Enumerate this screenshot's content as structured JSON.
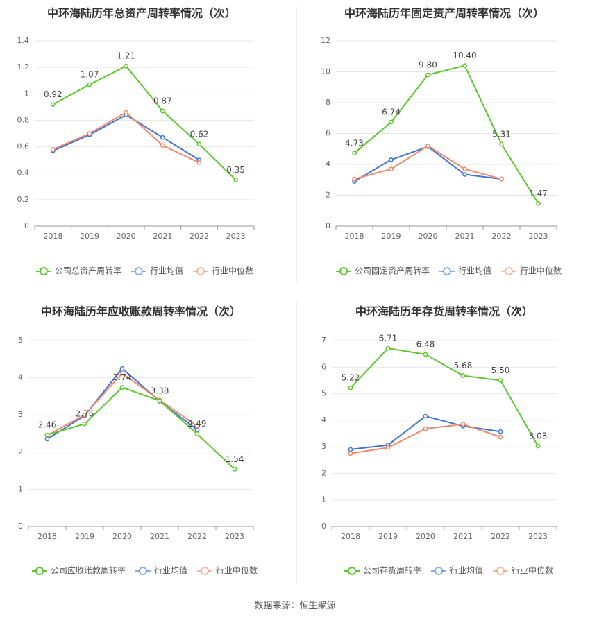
{
  "source_label": "数据来源：恒生聚源",
  "colors": {
    "company": "#5cc72c",
    "avg": "#3e74dc",
    "median": "#f0896a"
  },
  "chart_data": [
    {
      "type": "line",
      "title": "中环海陆历年总资产周转率情况（次）",
      "categories": [
        "2018",
        "2019",
        "2020",
        "2021",
        "2022",
        "2023"
      ],
      "ylim": [
        0,
        1.4
      ],
      "yticks": [
        0,
        0.2,
        0.4,
        0.6,
        0.8,
        1,
        1.2,
        1.4
      ],
      "ytick_labels": [
        "0",
        "0.2",
        "0.4",
        "0.6",
        "0.8",
        "1",
        "1.2",
        "1.4"
      ],
      "grid": true,
      "legend": "bottom",
      "series": [
        {
          "name": "公司总资产周转率",
          "values": [
            0.92,
            1.07,
            1.21,
            0.87,
            0.62,
            0.35
          ],
          "labels": [
            "0.92",
            "1.07",
            "1.21",
            "0.87",
            "0.62",
            "0.35"
          ]
        },
        {
          "name": "行业均值",
          "values": [
            0.57,
            0.69,
            0.84,
            0.67,
            0.5,
            null
          ]
        },
        {
          "name": "行业中位数",
          "values": [
            0.58,
            0.7,
            0.86,
            0.61,
            0.48,
            null
          ]
        }
      ]
    },
    {
      "type": "line",
      "title": "中环海陆历年固定资产周转率情况（次）",
      "categories": [
        "2018",
        "2019",
        "2020",
        "2021",
        "2022",
        "2023"
      ],
      "ylim": [
        0,
        12
      ],
      "yticks": [
        0,
        2,
        4,
        6,
        8,
        10,
        12
      ],
      "ytick_labels": [
        "0",
        "2",
        "4",
        "6",
        "8",
        "10",
        "12"
      ],
      "grid": true,
      "legend": "bottom",
      "series": [
        {
          "name": "公司固定资产周转率",
          "values": [
            4.73,
            6.74,
            9.8,
            10.4,
            5.31,
            1.47
          ],
          "labels": [
            "4.73",
            "6.74",
            "9.80",
            "10.40",
            "5.31",
            "1.47"
          ]
        },
        {
          "name": "行业均值",
          "values": [
            2.9,
            4.3,
            5.15,
            3.35,
            3.05,
            null
          ]
        },
        {
          "name": "行业中位数",
          "values": [
            3.05,
            3.7,
            5.2,
            3.7,
            3.05,
            null
          ]
        }
      ]
    },
    {
      "type": "line",
      "title": "中环海陆历年应收账款周转率情况（次）",
      "categories": [
        "2018",
        "2019",
        "2020",
        "2021",
        "2022",
        "2023"
      ],
      "ylim": [
        0,
        5
      ],
      "yticks": [
        0,
        1,
        2,
        3,
        4,
        5
      ],
      "ytick_labels": [
        "0",
        "1",
        "2",
        "3",
        "4",
        "5"
      ],
      "grid": true,
      "legend": "bottom",
      "series": [
        {
          "name": "公司应收账款周转率",
          "values": [
            2.46,
            2.76,
            3.74,
            3.38,
            2.49,
            1.54
          ],
          "labels": [
            "2.46",
            "2.76",
            "3.74",
            "3.38",
            "2.49",
            "1.54"
          ]
        },
        {
          "name": "行业均值",
          "values": [
            2.35,
            2.98,
            4.25,
            3.37,
            2.6,
            null
          ]
        },
        {
          "name": "行业中位数",
          "values": [
            2.45,
            3.0,
            4.12,
            3.4,
            2.7,
            null
          ]
        }
      ]
    },
    {
      "type": "line",
      "title": "中环海陆历年存货周转率情况（次）",
      "categories": [
        "2018",
        "2019",
        "2020",
        "2021",
        "2022",
        "2023"
      ],
      "ylim": [
        0,
        7
      ],
      "yticks": [
        0,
        1,
        2,
        3,
        4,
        5,
        6,
        7
      ],
      "ytick_labels": [
        "0",
        "1",
        "2",
        "3",
        "4",
        "5",
        "6",
        "7"
      ],
      "grid": true,
      "legend": "bottom",
      "series": [
        {
          "name": "公司存货周转率",
          "values": [
            5.22,
            6.71,
            6.48,
            5.68,
            5.5,
            3.03
          ],
          "labels": [
            "5.22",
            "6.71",
            "6.48",
            "5.68",
            "5.50",
            "3.03"
          ]
        },
        {
          "name": "行业均值",
          "values": [
            2.9,
            3.07,
            4.15,
            3.78,
            3.57,
            null
          ]
        },
        {
          "name": "行业中位数",
          "values": [
            2.75,
            2.97,
            3.68,
            3.85,
            3.37,
            null
          ]
        }
      ]
    }
  ]
}
